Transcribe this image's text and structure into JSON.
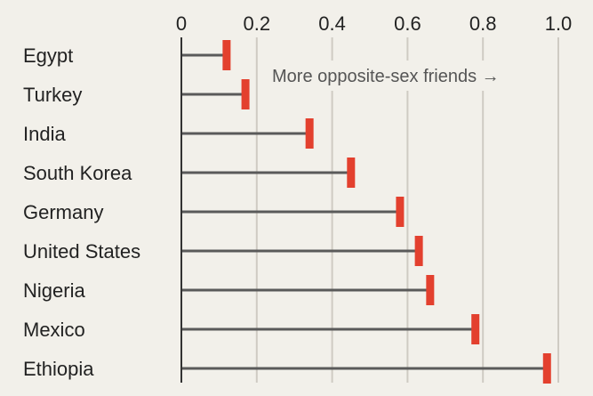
{
  "chart_data": {
    "type": "dot-plot",
    "title": "",
    "xlabel": "",
    "ylabel": "",
    "xlim": [
      0,
      1.0
    ],
    "xticks": [
      "0",
      "0.2",
      "0.4",
      "0.6",
      "0.8",
      "1.0"
    ],
    "grid": true,
    "categories": [
      "Egypt",
      "Turkey",
      "India",
      "South Korea",
      "Germany",
      "United States",
      "Nigeria",
      "Mexico",
      "Ethiopia"
    ],
    "values": [
      0.12,
      0.17,
      0.34,
      0.45,
      0.58,
      0.63,
      0.66,
      0.78,
      0.97
    ],
    "annotation": "More opposite-sex friends →",
    "colors": {
      "background": "#f2f0ea",
      "grid": "#cfcbc3",
      "stem": "#5a5a5a",
      "marker": "#e3402e",
      "axis": "#333333",
      "annotation_bg": "#f2f0ea"
    }
  }
}
